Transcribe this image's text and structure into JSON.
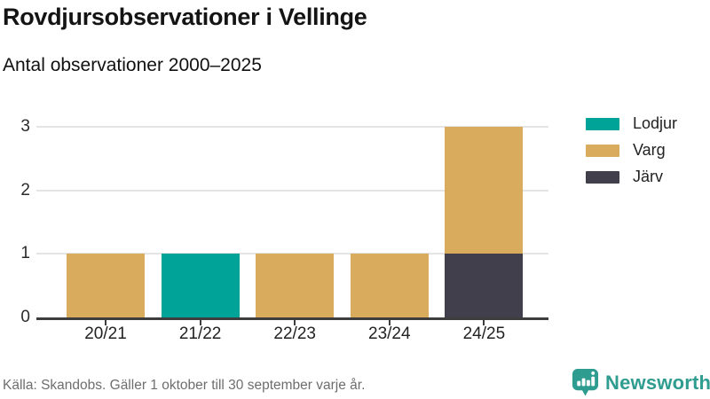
{
  "header": {
    "title": "Rovdjursobservationer i Vellinge",
    "subtitle": "Antal observationer 2000–2025"
  },
  "chart_data": {
    "type": "bar",
    "stacked": true,
    "title": "Rovdjursobservationer i Vellinge",
    "subtitle": "Antal observationer 2000–2025",
    "categories": [
      "20/21",
      "21/22",
      "22/23",
      "23/24",
      "24/25"
    ],
    "series": [
      {
        "name": "Lodjur",
        "color": "#00a398",
        "values": [
          0,
          1,
          0,
          0,
          0
        ]
      },
      {
        "name": "Varg",
        "color": "#d8ac5c",
        "values": [
          1,
          0,
          1,
          1,
          2
        ]
      },
      {
        "name": "Järv",
        "color": "#423f4d",
        "values": [
          0,
          0,
          0,
          0,
          1
        ]
      }
    ],
    "stack_order_bottom_to_top": [
      "Järv",
      "Varg",
      "Lodjur"
    ],
    "totals_per_category": [
      1,
      1,
      1,
      1,
      3
    ],
    "xlabel": "",
    "ylabel": "",
    "ylim": [
      0,
      3
    ],
    "yticks": [
      0,
      1,
      2,
      3
    ],
    "grid": true,
    "legend_position": "right"
  },
  "footer": {
    "source": "Källa: Skandobs. Gäller 1 oktober till 30 september varje år.",
    "brand": "Newsworthy"
  },
  "colors": {
    "lodjur_teal": "#00a398",
    "varg_gold": "#d8ac5c",
    "jarv_dark": "#423f4d",
    "brand_teal": "#2f9c90",
    "gridline": "#e4e4e4",
    "axis": "#3d3d3d"
  }
}
